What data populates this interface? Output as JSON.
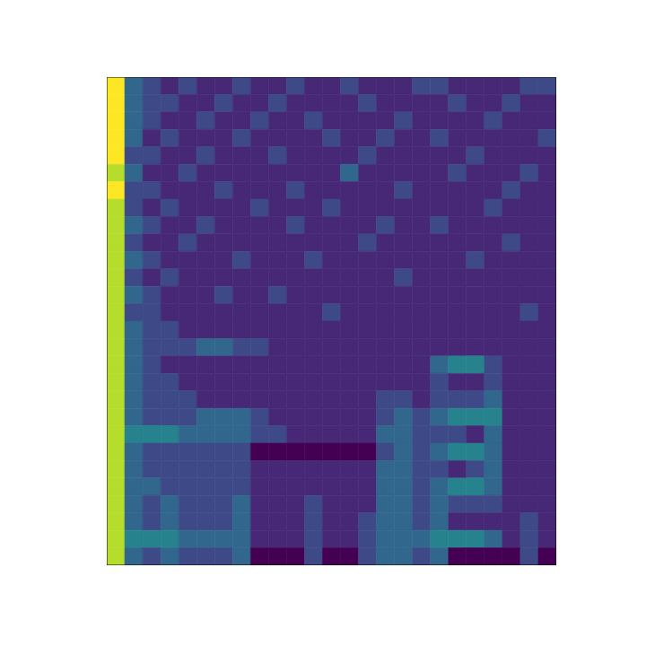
{
  "chart_data": {
    "type": "heatmap",
    "color": "viridis",
    "tick_labels": false,
    "xlim": [
      0,
      25
    ],
    "ylim": [
      0,
      28
    ],
    "cells": [
      [
        9,
        3,
        2,
        1,
        2,
        1,
        1,
        2,
        1,
        1,
        2,
        1,
        1,
        2,
        1,
        1,
        1,
        2,
        2,
        1,
        1,
        1,
        1,
        2,
        2
      ],
      [
        9,
        3,
        2,
        2,
        1,
        1,
        2,
        1,
        1,
        2,
        1,
        1,
        1,
        1,
        2,
        1,
        1,
        1,
        1,
        2,
        1,
        1,
        2,
        1,
        1
      ],
      [
        9,
        3,
        2,
        1,
        1,
        2,
        1,
        1,
        2,
        1,
        1,
        2,
        1,
        1,
        1,
        1,
        2,
        1,
        1,
        1,
        1,
        2,
        1,
        1,
        1
      ],
      [
        9,
        3,
        1,
        2,
        1,
        1,
        1,
        2,
        1,
        1,
        1,
        1,
        2,
        1,
        1,
        2,
        1,
        1,
        2,
        1,
        1,
        1,
        1,
        1,
        2
      ],
      [
        9,
        2,
        2,
        1,
        1,
        2,
        1,
        1,
        1,
        2,
        1,
        1,
        1,
        1,
        2,
        1,
        1,
        1,
        1,
        1,
        2,
        1,
        1,
        1,
        1
      ],
      [
        8,
        3,
        1,
        1,
        2,
        1,
        1,
        1,
        1,
        1,
        1,
        1,
        1,
        3,
        1,
        1,
        1,
        1,
        1,
        2,
        1,
        1,
        1,
        2,
        1
      ],
      [
        9,
        2,
        2,
        1,
        1,
        1,
        2,
        1,
        1,
        1,
        2,
        1,
        1,
        1,
        1,
        1,
        2,
        1,
        1,
        1,
        1,
        1,
        2,
        1,
        1
      ],
      [
        8,
        2,
        1,
        2,
        1,
        1,
        1,
        1,
        2,
        1,
        1,
        1,
        2,
        1,
        1,
        1,
        1,
        1,
        1,
        1,
        1,
        2,
        1,
        1,
        1
      ],
      [
        8,
        3,
        2,
        1,
        1,
        2,
        1,
        1,
        1,
        1,
        2,
        1,
        1,
        1,
        1,
        2,
        1,
        1,
        2,
        1,
        1,
        1,
        1,
        1,
        1
      ],
      [
        8,
        2,
        1,
        1,
        2,
        1,
        1,
        1,
        1,
        1,
        1,
        1,
        1,
        1,
        2,
        1,
        1,
        1,
        1,
        1,
        1,
        1,
        2,
        1,
        1
      ],
      [
        8,
        3,
        2,
        1,
        1,
        1,
        1,
        2,
        1,
        1,
        1,
        2,
        1,
        1,
        1,
        1,
        1,
        1,
        1,
        1,
        2,
        1,
        1,
        1,
        1
      ],
      [
        8,
        2,
        1,
        2,
        1,
        1,
        1,
        1,
        1,
        1,
        1,
        1,
        1,
        1,
        1,
        1,
        2,
        1,
        1,
        1,
        1,
        1,
        1,
        1,
        1
      ],
      [
        8,
        3,
        2,
        1,
        1,
        1,
        2,
        1,
        1,
        2,
        1,
        1,
        1,
        1,
        1,
        1,
        1,
        1,
        1,
        1,
        1,
        1,
        1,
        1,
        1
      ],
      [
        8,
        2,
        2,
        1,
        1,
        1,
        1,
        1,
        1,
        1,
        1,
        1,
        2,
        1,
        1,
        1,
        1,
        1,
        1,
        1,
        1,
        1,
        1,
        2,
        1
      ],
      [
        8,
        3,
        2,
        2,
        1,
        1,
        1,
        1,
        1,
        1,
        1,
        1,
        1,
        1,
        1,
        1,
        1,
        1,
        1,
        1,
        1,
        1,
        1,
        1,
        1
      ],
      [
        8,
        3,
        2,
        2,
        2,
        3,
        3,
        2,
        2,
        1,
        1,
        1,
        1,
        1,
        1,
        1,
        1,
        1,
        1,
        1,
        1,
        1,
        1,
        1,
        1
      ],
      [
        8,
        3,
        2,
        1,
        1,
        1,
        1,
        1,
        1,
        1,
        1,
        1,
        1,
        1,
        1,
        1,
        1,
        1,
        3,
        4,
        4,
        2,
        1,
        1,
        1
      ],
      [
        8,
        3,
        2,
        2,
        1,
        1,
        1,
        1,
        1,
        1,
        1,
        1,
        1,
        1,
        1,
        1,
        1,
        1,
        2,
        1,
        1,
        2,
        1,
        1,
        1
      ],
      [
        8,
        3,
        2,
        2,
        2,
        1,
        1,
        1,
        1,
        1,
        1,
        1,
        1,
        1,
        1,
        2,
        2,
        1,
        2,
        2,
        2,
        3,
        1,
        1,
        1
      ],
      [
        8,
        3,
        2,
        2,
        2,
        3,
        3,
        3,
        2,
        1,
        1,
        1,
        1,
        1,
        1,
        2,
        3,
        2,
        3,
        4,
        4,
        4,
        1,
        1,
        1
      ],
      [
        8,
        4,
        4,
        4,
        3,
        3,
        3,
        3,
        2,
        2,
        1,
        1,
        1,
        1,
        1,
        3,
        3,
        2,
        2,
        2,
        1,
        3,
        1,
        1,
        1
      ],
      [
        8,
        3,
        2,
        2,
        2,
        2,
        2,
        2,
        0,
        0,
        0,
        0,
        0,
        0,
        0,
        2,
        3,
        2,
        3,
        4,
        4,
        3,
        1,
        1,
        1
      ],
      [
        8,
        3,
        2,
        2,
        2,
        2,
        2,
        2,
        1,
        1,
        1,
        1,
        1,
        1,
        1,
        3,
        3,
        2,
        2,
        1,
        2,
        3,
        1,
        1,
        1
      ],
      [
        8,
        3,
        3,
        2,
        2,
        2,
        2,
        2,
        1,
        1,
        1,
        1,
        1,
        1,
        1,
        3,
        3,
        2,
        3,
        4,
        4,
        3,
        1,
        1,
        1
      ],
      [
        8,
        3,
        2,
        3,
        2,
        2,
        2,
        3,
        1,
        1,
        1,
        2,
        1,
        1,
        1,
        3,
        3,
        2,
        3,
        2,
        2,
        2,
        1,
        1,
        1
      ],
      [
        8,
        3,
        2,
        3,
        2,
        2,
        2,
        3,
        1,
        1,
        1,
        2,
        1,
        1,
        2,
        3,
        3,
        2,
        3,
        1,
        1,
        1,
        1,
        2,
        1
      ],
      [
        8,
        4,
        4,
        4,
        3,
        3,
        3,
        3,
        1,
        1,
        1,
        2,
        1,
        1,
        2,
        3,
        3,
        3,
        4,
        4,
        4,
        3,
        1,
        2,
        1
      ],
      [
        8,
        3,
        2,
        3,
        2,
        2,
        2,
        3,
        0,
        0,
        0,
        2,
        0,
        0,
        2,
        3,
        3,
        2,
        3,
        0,
        0,
        0,
        0,
        2,
        0
      ]
    ]
  }
}
